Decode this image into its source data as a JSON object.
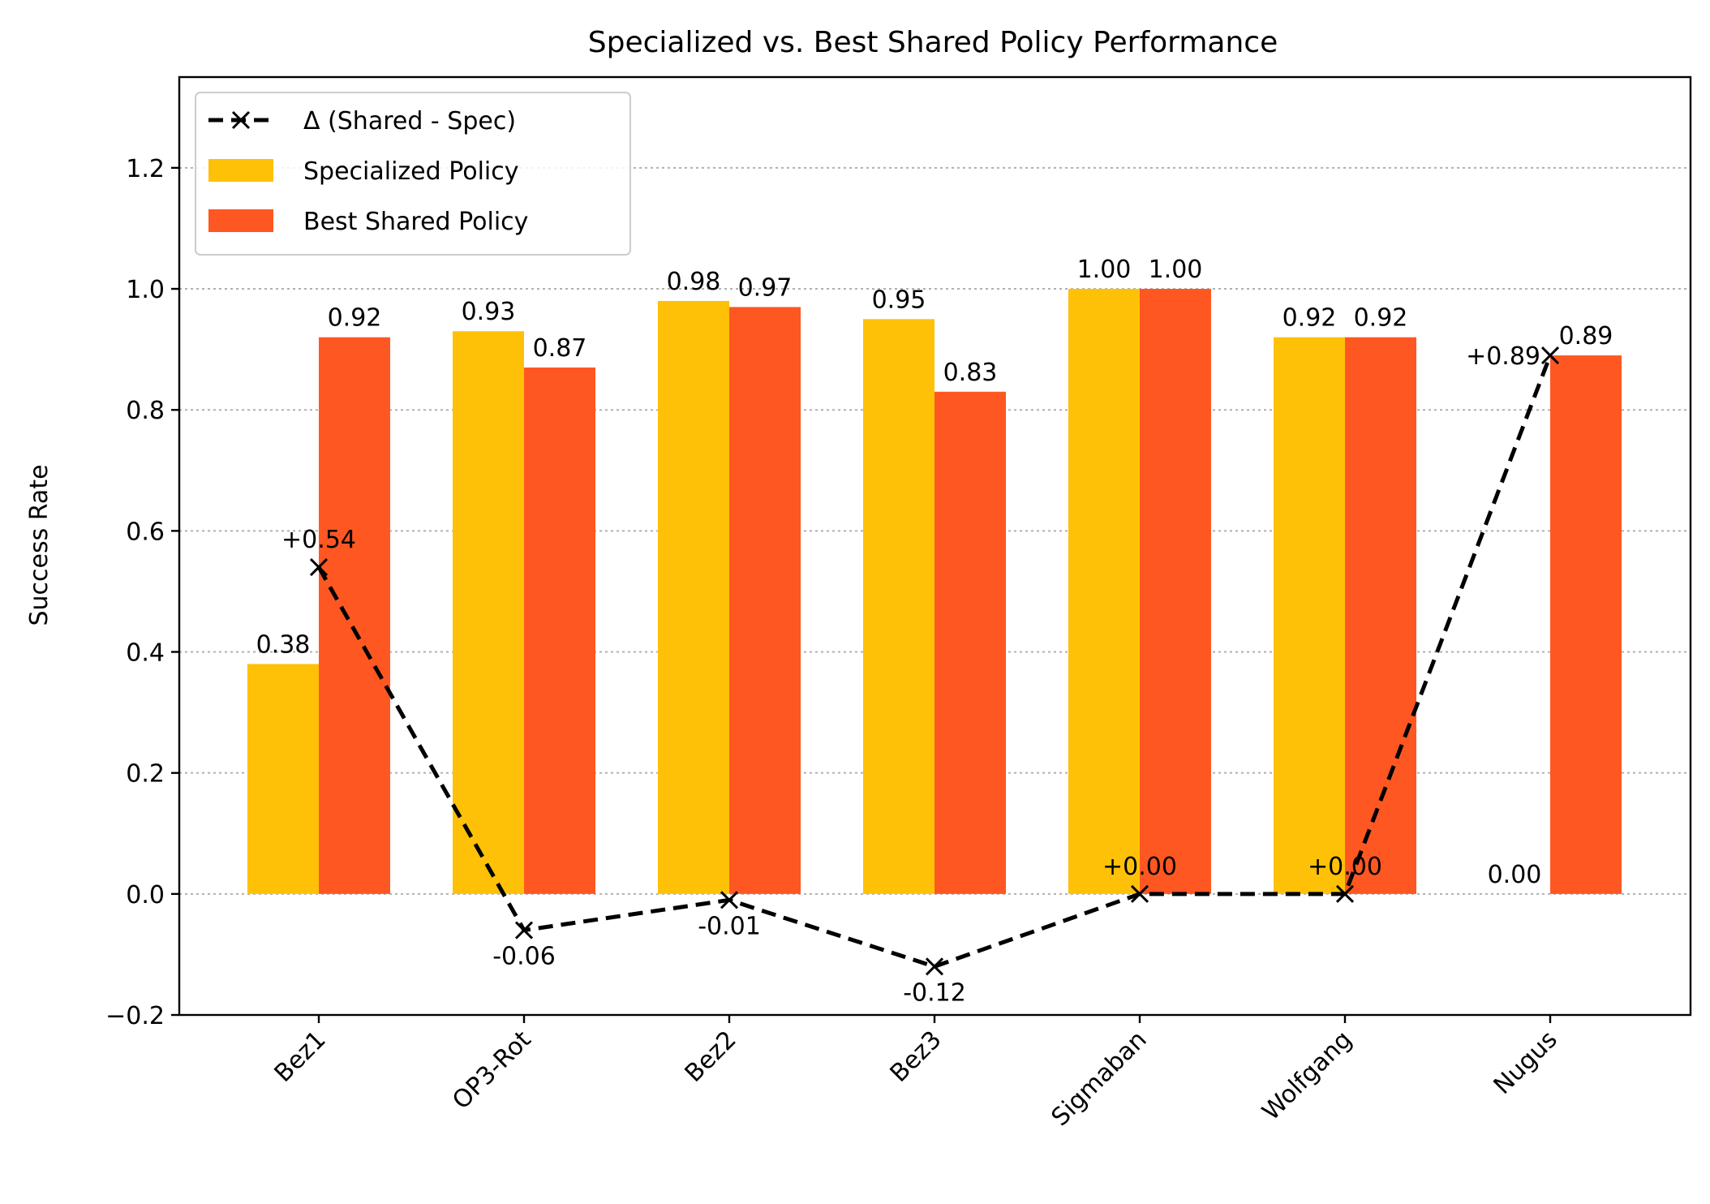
{
  "chart_data": {
    "type": "bar",
    "title": "Specialized vs. Best Shared Policy Performance",
    "xlabel": "",
    "ylabel": "Success Rate",
    "ylim": [
      -0.2,
      1.35
    ],
    "yticks": [
      -0.2,
      0.0,
      0.2,
      0.4,
      0.6,
      0.8,
      1.0,
      1.2
    ],
    "ytick_labels": [
      "−0.2",
      "0.0",
      "0.2",
      "0.4",
      "0.6",
      "0.8",
      "1.0",
      "1.2"
    ],
    "categories": [
      "Bez1",
      "OP3-Rot",
      "Bez2",
      "Bez3",
      "Sigmaban",
      "Wolfgang",
      "Nugus"
    ],
    "series": [
      {
        "name": "Specialized Policy",
        "kind": "bar",
        "color": "#FFC107",
        "values": [
          0.38,
          0.93,
          0.98,
          0.95,
          1.0,
          0.92,
          0.0
        ],
        "labels": [
          "0.38",
          "0.93",
          "0.98",
          "0.95",
          "1.00",
          "0.92",
          "0.00"
        ]
      },
      {
        "name": "Best Shared Policy",
        "kind": "bar",
        "color": "#FF5722",
        "values": [
          0.92,
          0.87,
          0.97,
          0.83,
          1.0,
          0.92,
          0.89
        ],
        "labels": [
          "0.92",
          "0.87",
          "0.97",
          "0.83",
          "1.00",
          "0.92",
          "0.89"
        ]
      },
      {
        "name": "Δ (Shared - Spec)",
        "kind": "line",
        "color": "#000000",
        "marker": "x",
        "linestyle": "dashed",
        "values": [
          0.54,
          -0.06,
          -0.01,
          -0.12,
          0.0,
          0.0,
          0.89
        ],
        "labels": [
          "+0.54",
          "-0.06",
          "-0.01",
          "-0.12",
          "+0.00",
          "+0.00",
          "+0.89"
        ]
      }
    ],
    "grid": "y-dotted",
    "legend": "top-left"
  }
}
